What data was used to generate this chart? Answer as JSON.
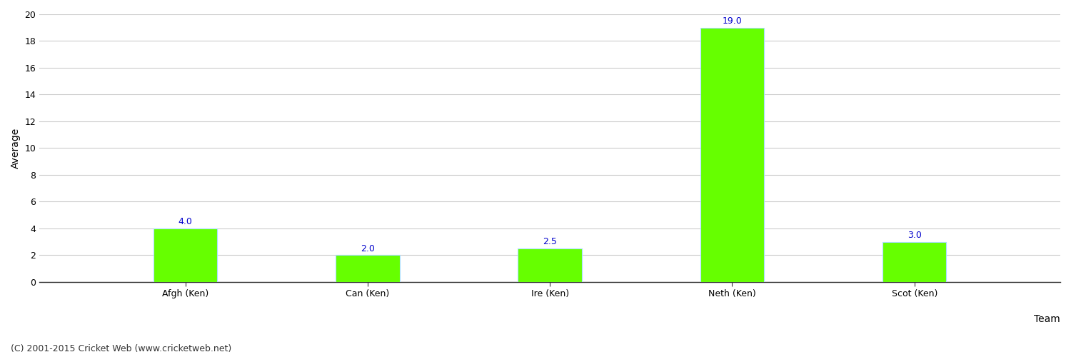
{
  "categories": [
    "Afgh (Ken)",
    "Can (Ken)",
    "Ire (Ken)",
    "Neth (Ken)",
    "Scot (Ken)"
  ],
  "values": [
    4.0,
    2.0,
    2.5,
    19.0,
    3.0
  ],
  "bar_color": "#66ff00",
  "bar_edge_color": "#aaffaa",
  "xlabel": "Team",
  "ylabel": "Average",
  "ylim": [
    0,
    20
  ],
  "yticks": [
    0,
    2,
    4,
    6,
    8,
    10,
    12,
    14,
    16,
    18,
    20
  ],
  "value_label_color": "#0000cc",
  "value_label_fontsize": 9,
  "axis_label_fontsize": 10,
  "tick_label_fontsize": 9,
  "background_color": "#ffffff",
  "grid_color": "#cccccc",
  "bar_width": 0.35,
  "footer_text": "(C) 2001-2015 Cricket Web (www.cricketweb.net)",
  "footer_fontsize": 9,
  "footer_color": "#333333"
}
